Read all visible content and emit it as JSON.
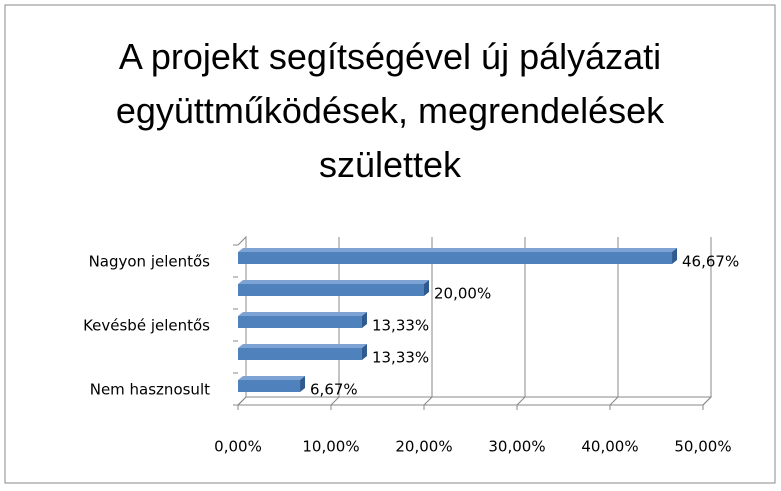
{
  "chart_data": {
    "type": "barh",
    "title": "A projekt segítségével új pályázati együttműködések, megrendelések születtek",
    "categories": [
      "Nagyon jelentős",
      null,
      "Kevésbé jelentős",
      null,
      "Nem hasznosult"
    ],
    "values": [
      46.67,
      20,
      13.33,
      13.33,
      6.67
    ],
    "value_labels": [
      "46,67%",
      "20,00%",
      "13,33%",
      "13,33%",
      "6,67%"
    ],
    "color": "#4f81bd",
    "xlim": [
      0,
      50
    ],
    "xticks": [
      {
        "value": 0,
        "label": "0,00%"
      },
      {
        "value": 10,
        "label": "10,00%"
      },
      {
        "value": 20,
        "label": "20,00%"
      },
      {
        "value": 30,
        "label": "30,00%"
      },
      {
        "value": 40,
        "label": "40,00%"
      },
      {
        "value": 50,
        "label": "50,00%"
      }
    ],
    "grid": true
  }
}
